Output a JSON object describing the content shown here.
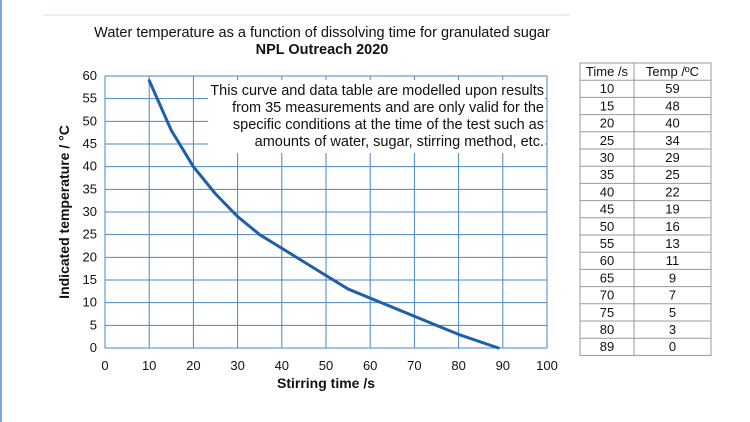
{
  "colors": {
    "curve": "#1f5fa8",
    "grid": "#4a86c5",
    "plot_border": "#c4c4c4",
    "page_left_border": "#7aa7d6",
    "table_border": "#9a9a9a"
  },
  "chart_data": {
    "type": "line",
    "title": "Water temperature as a function of dissolving time for granulated sugar",
    "subtitle": "NPL Outreach 2020",
    "xlabel": "Stirring time /s",
    "ylabel": "Indicated temperature / °C",
    "xlim": [
      0,
      100
    ],
    "ylim": [
      0,
      60
    ],
    "xticks": [
      0,
      10,
      20,
      30,
      40,
      50,
      60,
      70,
      80,
      90,
      100
    ],
    "yticks": [
      0,
      5,
      10,
      15,
      20,
      25,
      30,
      35,
      40,
      45,
      50,
      55,
      60
    ],
    "grid": true,
    "legend": "none",
    "series": [
      {
        "x": [
          10,
          15,
          20,
          25,
          30,
          35,
          40,
          45,
          50,
          55,
          60,
          65,
          70,
          75,
          80,
          89
        ],
        "y": [
          59,
          48,
          40,
          34,
          29,
          25,
          22,
          19,
          16,
          13,
          11,
          9,
          7,
          5,
          3,
          0
        ]
      }
    ],
    "annotation": [
      "This curve and data table are modelled upon results",
      "from 35 measurements and are only valid for the",
      "specific conditions at the time of the test such as",
      "amounts of water, sugar, stirring method, etc."
    ],
    "table": {
      "headers": [
        "Time /s",
        "Temp /ºC"
      ],
      "rows": [
        [
          "10",
          "59"
        ],
        [
          "15",
          "48"
        ],
        [
          "20",
          "40"
        ],
        [
          "25",
          "34"
        ],
        [
          "30",
          "29"
        ],
        [
          "35",
          "25"
        ],
        [
          "40",
          "22"
        ],
        [
          "45",
          "19"
        ],
        [
          "50",
          "16"
        ],
        [
          "55",
          "13"
        ],
        [
          "60",
          "11"
        ],
        [
          "65",
          "9"
        ],
        [
          "70",
          "7"
        ],
        [
          "75",
          "5"
        ],
        [
          "80",
          "3"
        ],
        [
          "89",
          "0"
        ]
      ]
    }
  }
}
